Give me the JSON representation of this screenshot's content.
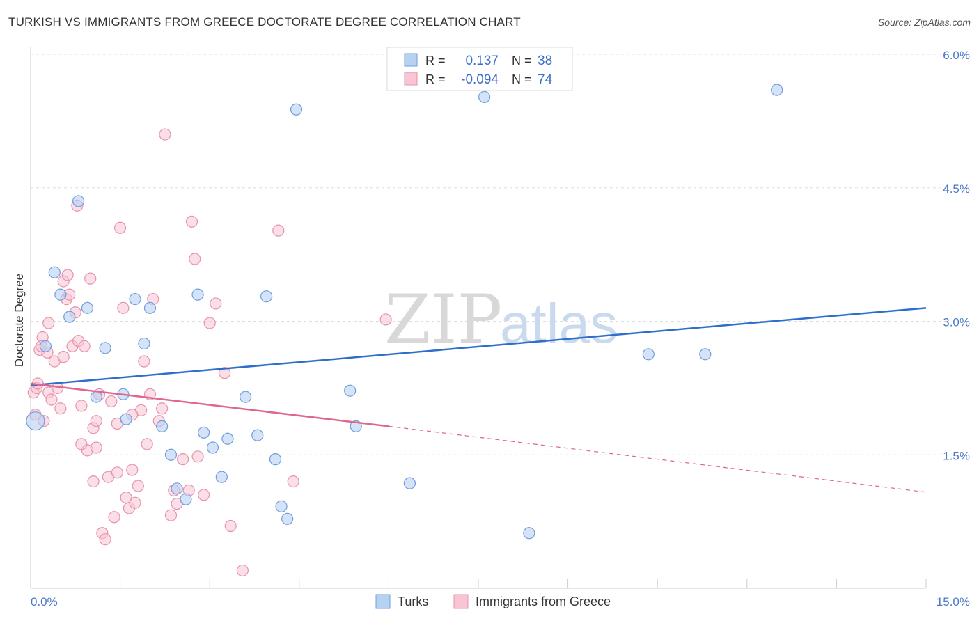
{
  "title": "TURKISH VS IMMIGRANTS FROM GREECE DOCTORATE DEGREE CORRELATION CHART",
  "source": "Source: ZipAtlas.com",
  "watermark": {
    "part1": "ZIP",
    "part2": "atlas"
  },
  "colors": {
    "turks_fill": "#b7d1f3",
    "turks_stroke": "#6f9edc",
    "turks_line": "#2f6fcc",
    "greece_fill": "#f7c5d3",
    "greece_stroke": "#e891ab",
    "greece_line": "#e0668e",
    "grid": "#dddddd",
    "axis_text": "#4a78c8"
  },
  "legend": {
    "rows": [
      {
        "r_label": "R =",
        "r_value": "0.137",
        "n_label": "N =",
        "n_value": "38"
      },
      {
        "r_label": "R =",
        "r_value": "-0.094",
        "n_label": "N =",
        "n_value": "74"
      }
    ]
  },
  "chart_data": {
    "type": "scatter",
    "xlabel": "",
    "ylabel": "Doctorate Degree",
    "xlim": [
      0,
      15
    ],
    "ylim": [
      0,
      6.0
    ],
    "x_tick_labels": [
      "0.0%",
      "15.0%"
    ],
    "y_tick_labels": [
      "1.5%",
      "3.0%",
      "4.5%",
      "6.0%"
    ],
    "y_ticks": [
      1.5,
      3.0,
      4.5,
      6.0
    ],
    "grid": true,
    "legend_position": "top-center",
    "series": [
      {
        "name": "Turks",
        "r": 0.137,
        "n": 38,
        "trend": {
          "x": [
            0,
            15
          ],
          "y": [
            2.28,
            3.15
          ]
        },
        "points": [
          [
            0.08,
            1.88
          ],
          [
            0.25,
            2.72
          ],
          [
            0.4,
            3.55
          ],
          [
            0.5,
            3.3
          ],
          [
            0.65,
            3.05
          ],
          [
            0.8,
            4.35
          ],
          [
            0.95,
            3.15
          ],
          [
            1.1,
            2.15
          ],
          [
            1.25,
            2.7
          ],
          [
            1.55,
            2.18
          ],
          [
            1.6,
            1.9
          ],
          [
            1.75,
            3.25
          ],
          [
            1.9,
            2.75
          ],
          [
            2.0,
            3.15
          ],
          [
            2.2,
            1.82
          ],
          [
            2.35,
            1.5
          ],
          [
            2.45,
            1.12
          ],
          [
            2.6,
            1.0
          ],
          [
            2.8,
            3.3
          ],
          [
            2.9,
            1.75
          ],
          [
            3.05,
            1.58
          ],
          [
            3.2,
            1.25
          ],
          [
            3.3,
            1.68
          ],
          [
            3.6,
            2.15
          ],
          [
            3.8,
            1.72
          ],
          [
            3.95,
            3.28
          ],
          [
            4.1,
            1.45
          ],
          [
            4.2,
            0.92
          ],
          [
            4.3,
            0.78
          ],
          [
            4.45,
            5.38
          ],
          [
            5.35,
            2.22
          ],
          [
            5.45,
            1.82
          ],
          [
            6.35,
            1.18
          ],
          [
            7.6,
            5.52
          ],
          [
            8.35,
            0.62
          ],
          [
            10.35,
            2.63
          ],
          [
            11.3,
            2.63
          ],
          [
            12.5,
            5.6
          ]
        ]
      },
      {
        "name": "Immigrants from Greece",
        "r": -0.094,
        "n": 74,
        "trend": {
          "x": [
            0,
            6
          ],
          "y": [
            2.3,
            1.82
          ]
        },
        "trend_dashed": {
          "x": [
            6,
            15
          ],
          "y": [
            1.82,
            1.08
          ]
        },
        "points": [
          [
            0.05,
            2.2
          ],
          [
            0.1,
            2.25
          ],
          [
            0.15,
            2.68
          ],
          [
            0.2,
            2.82
          ],
          [
            0.22,
            1.88
          ],
          [
            0.28,
            2.65
          ],
          [
            0.3,
            2.2
          ],
          [
            0.35,
            2.12
          ],
          [
            0.4,
            2.55
          ],
          [
            0.45,
            2.25
          ],
          [
            0.5,
            2.02
          ],
          [
            0.55,
            3.45
          ],
          [
            0.6,
            3.25
          ],
          [
            0.65,
            3.3
          ],
          [
            0.7,
            2.72
          ],
          [
            0.75,
            3.1
          ],
          [
            0.8,
            2.78
          ],
          [
            0.85,
            2.05
          ],
          [
            0.9,
            2.72
          ],
          [
            0.95,
            1.55
          ],
          [
            1.0,
            3.48
          ],
          [
            1.05,
            1.8
          ],
          [
            1.1,
            1.88
          ],
          [
            1.15,
            2.18
          ],
          [
            1.2,
            0.62
          ],
          [
            1.3,
            1.25
          ],
          [
            1.35,
            2.1
          ],
          [
            1.4,
            0.8
          ],
          [
            1.45,
            1.85
          ],
          [
            1.55,
            3.15
          ],
          [
            1.6,
            1.02
          ],
          [
            1.65,
            0.9
          ],
          [
            1.7,
            1.33
          ],
          [
            1.75,
            0.96
          ],
          [
            1.8,
            1.15
          ],
          [
            1.85,
            2.0
          ],
          [
            1.9,
            2.55
          ],
          [
            1.95,
            1.62
          ],
          [
            2.0,
            2.18
          ],
          [
            2.05,
            3.25
          ],
          [
            2.2,
            2.02
          ],
          [
            2.25,
            5.1
          ],
          [
            2.35,
            0.82
          ],
          [
            2.45,
            0.95
          ],
          [
            2.55,
            1.45
          ],
          [
            2.65,
            1.1
          ],
          [
            2.7,
            4.12
          ],
          [
            2.75,
            3.7
          ],
          [
            2.8,
            1.48
          ],
          [
            3.0,
            2.98
          ],
          [
            3.1,
            3.2
          ],
          [
            3.25,
            2.42
          ],
          [
            3.35,
            0.7
          ],
          [
            3.55,
            0.2
          ],
          [
            4.15,
            4.02
          ],
          [
            4.4,
            1.2
          ],
          [
            5.95,
            3.02
          ],
          [
            0.08,
            1.95
          ],
          [
            0.12,
            2.3
          ],
          [
            0.18,
            2.72
          ],
          [
            1.25,
            0.55
          ],
          [
            1.5,
            4.05
          ],
          [
            2.15,
            1.88
          ],
          [
            0.62,
            3.52
          ],
          [
            0.85,
            1.62
          ],
          [
            1.05,
            1.2
          ],
          [
            1.45,
            1.3
          ],
          [
            1.7,
            1.95
          ],
          [
            2.4,
            1.1
          ],
          [
            2.9,
            1.05
          ],
          [
            0.3,
            2.98
          ],
          [
            0.55,
            2.6
          ],
          [
            1.1,
            1.58
          ],
          [
            0.78,
            4.3
          ]
        ]
      }
    ]
  },
  "bottom_legend": [
    "Turks",
    "Immigrants from Greece"
  ]
}
